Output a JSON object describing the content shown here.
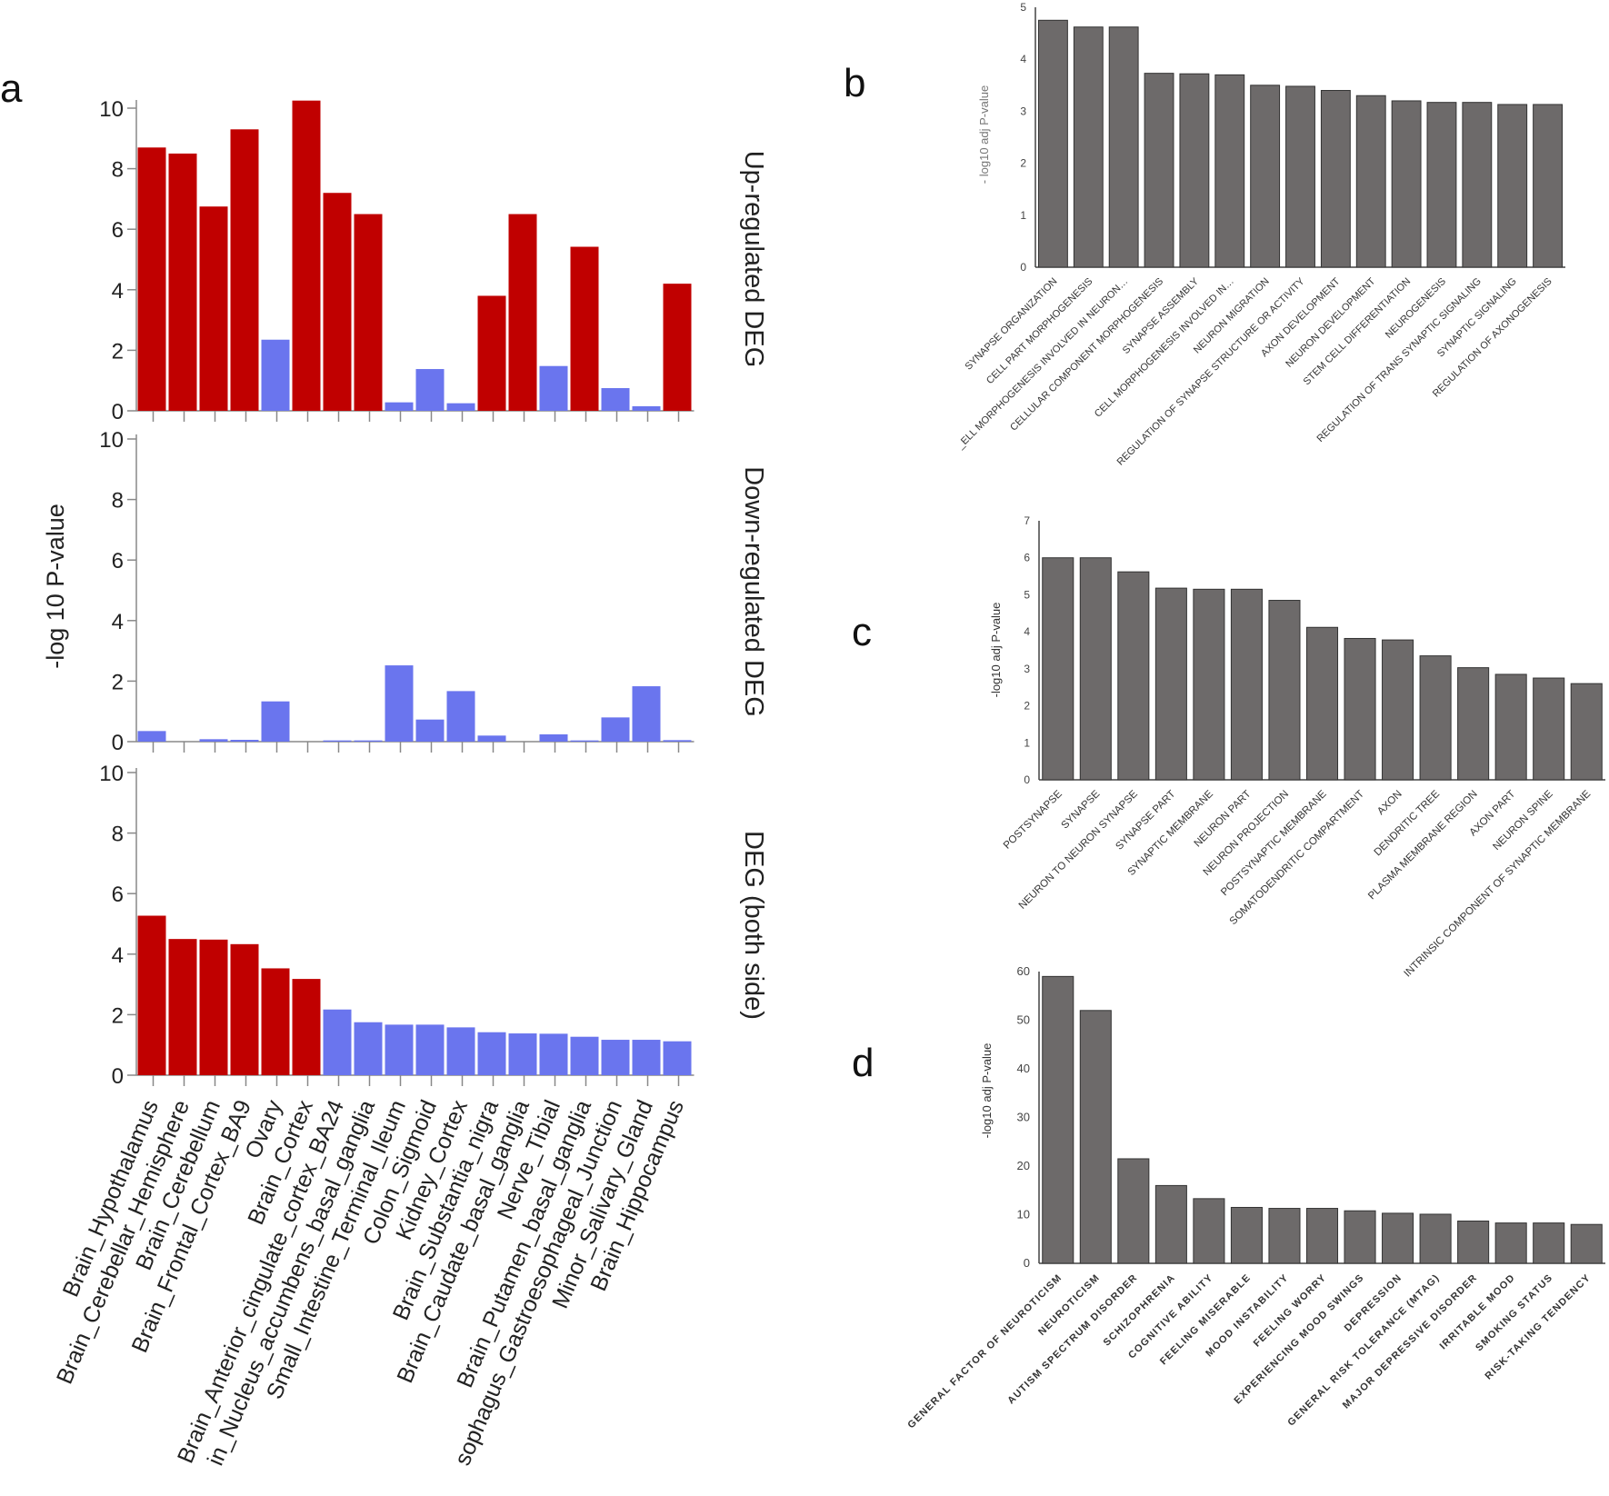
{
  "figure": {
    "panel_labels": [
      "a",
      "b",
      "c",
      "d"
    ],
    "colors": {
      "red": "#c00000",
      "blue": "#6a75ee",
      "gray": "#6d6a6a",
      "axis": "#888888",
      "text": "#222222"
    }
  },
  "chart_data": [
    {
      "id": "a",
      "type": "bar",
      "ylabel": "-log 10 P-value",
      "ylim": [
        0,
        10
      ],
      "yticks": [
        0,
        2,
        4,
        6,
        8,
        10
      ],
      "panels": [
        {
          "title": "Up-regulated DEG",
          "values": [
            8.7,
            8.5,
            6.75,
            9.3,
            2.35,
            10.25,
            7.2,
            6.5,
            0.28,
            1.38,
            0.25,
            3.8,
            6.5,
            1.48,
            5.42,
            0.75,
            0.15,
            4.2
          ],
          "colors": [
            "red",
            "red",
            "red",
            "red",
            "blue",
            "red",
            "red",
            "red",
            "blue",
            "blue",
            "blue",
            "red",
            "red",
            "blue",
            "red",
            "blue",
            "blue",
            "red"
          ]
        },
        {
          "title": "Down-regulated DEG",
          "values": [
            0.35,
            0,
            0.08,
            0.06,
            1.33,
            0,
            0.04,
            0.04,
            2.52,
            0.73,
            1.67,
            0.2,
            0,
            0.24,
            0.04,
            0.8,
            1.83,
            0.05
          ],
          "colors": [
            "blue",
            "blue",
            "blue",
            "blue",
            "blue",
            "blue",
            "blue",
            "blue",
            "blue",
            "blue",
            "blue",
            "blue",
            "blue",
            "blue",
            "blue",
            "blue",
            "blue",
            "blue"
          ]
        },
        {
          "title": "DEG (both side)",
          "values": [
            5.27,
            4.5,
            4.48,
            4.33,
            3.53,
            3.18,
            2.17,
            1.75,
            1.67,
            1.67,
            1.58,
            1.42,
            1.38,
            1.37,
            1.27,
            1.17,
            1.17,
            1.12
          ],
          "colors": [
            "red",
            "red",
            "red",
            "red",
            "red",
            "red",
            "blue",
            "blue",
            "blue",
            "blue",
            "blue",
            "blue",
            "blue",
            "blue",
            "blue",
            "blue",
            "blue",
            "blue"
          ]
        }
      ],
      "categories": [
        "Brain_Hypothalamus",
        "Brain_Cerebellar_Hemisphere",
        "Brain_Cerebellum",
        "Brain_Frontal_Cortex_BA9",
        "Ovary",
        "Brain_Cortex",
        "Brain_Anterior_cingulate_cortex_BA24",
        "Brain_Nucleus_accumbens_basal_ganglia",
        "Small_Intestine_Terminal_Ileum",
        "Colon_Sigmoid",
        "Kidney_Cortex",
        "Brain_Substantia_nigra",
        "Brain_Caudate_basal_ganglia",
        "Nerve_Tibial",
        "Brain_Putamen_basal_ganglia",
        "Esophagus_Gastroesophageal_Junction",
        "Minor_Salivary_Gland",
        "Brain_Hippocampus"
      ],
      "visible_labels": [
        "Brain_Hypothalamus",
        "Brain_Cerebellar_Hemisphere",
        "Brain_Cerebellum",
        "Brain_Frontal_Cortex_BA9",
        "Ovary",
        "Brain_Cortex",
        "Brain_Anterior_cingulate_cortex_BA24",
        "in_Nucleus_accumbens_basal_ganglia",
        "Small_Intestine_Terminal_Ileum",
        "Colon_Sigmoid",
        "Kidney_Cortex",
        "Brain_Substantia_nigra",
        "Brain_Caudate_basal_ganglia",
        "Nerve_Tibial",
        "Brain_Putamen_basal_ganglia",
        "sophagus_Gastroesophageal_Junction",
        "Minor_Salivary_Gland",
        "Brain_Hippocampus"
      ]
    },
    {
      "id": "b",
      "type": "bar",
      "ylabel": "- log10 adj P-value",
      "ylim": [
        0,
        5
      ],
      "yticks": [
        0,
        1,
        2,
        3,
        4,
        5
      ],
      "categories": [
        "SYNAPSE ORGANIZATION",
        "CELL PART MORPHOGENESIS",
        "_ELL MORPHOGENESIS INVOLVED IN NEURON…",
        "CELLULAR COMPONENT MORPHOGENESIS",
        "SYNAPSE ASSEMBLY",
        "CELL MORPHOGENESIS INVOLVED IN…",
        "NEURON MIGRATION",
        "REGULATION OF SYNAPSE STRUCTURE OR ACTIVITY",
        "AXON DEVELOPMENT",
        "NEURON DEVELOPMENT",
        "STEM CELL DIFFERENTIATION",
        "NEUROGENESIS",
        "REGULATION OF TRANS SYNAPTIC SIGNALING",
        "SYNAPTIC SIGNALING",
        "REGULATION OF AXONOGENESIS"
      ],
      "values": [
        4.75,
        4.62,
        4.62,
        3.73,
        3.72,
        3.7,
        3.5,
        3.48,
        3.4,
        3.3,
        3.2,
        3.17,
        3.17,
        3.13,
        3.13
      ]
    },
    {
      "id": "c",
      "type": "bar",
      "ylabel": "-log10 adj P-value",
      "ylim": [
        0,
        7
      ],
      "yticks": [
        0,
        1,
        2,
        3,
        4,
        5,
        6,
        7
      ],
      "categories": [
        "POSTSYNAPSE",
        "SYNAPSE",
        "NEURON TO NEURON SYNAPSE",
        "SYNAPSE PART",
        "SYNAPTIC MEMBRANE",
        "NEURON PART",
        "NEURON PROJECTION",
        "POSTSYNAPTIC MEMBRANE",
        "SOMATODENDRITIC COMPARTMENT",
        "AXON",
        "DENDRITIC TREE",
        "PLASMA MEMBRANE REGION",
        "AXON PART",
        "NEURON SPINE",
        "INTRINSIC COMPONENT OF SYNAPTIC MEMBRANE"
      ],
      "values": [
        6.0,
        6.0,
        5.62,
        5.18,
        5.15,
        5.15,
        4.85,
        4.12,
        3.82,
        3.78,
        3.35,
        3.03,
        2.85,
        2.75,
        2.6
      ]
    },
    {
      "id": "d",
      "type": "bar",
      "ylabel": "-log10 adj P-value",
      "ylim": [
        0,
        60
      ],
      "yticks": [
        0,
        10,
        20,
        30,
        40,
        50,
        60
      ],
      "categories": [
        "GENERAL FACTOR OF NEUROTICISM",
        "NEUROTICISM",
        "AUTISM SPECTRUM DISORDER",
        "SCHIZOPHRENIA",
        "COGNITIVE ABILITY",
        "FEELING MISERABLE",
        "MOOD INSTABILITY",
        "FEELING WORRY",
        "EXPERIENCING MOOD SWINGS",
        "DEPRESSION",
        "GENERAL RISK TOLERANCE (MTAG)",
        "MAJOR DEPRESSIVE DISORDER",
        "IRRITABLE MOOD",
        "SMOKING STATUS",
        "RISK-TAKING TENDENCY"
      ],
      "values": [
        59,
        52,
        21.5,
        16,
        13.3,
        11.5,
        11.3,
        11.3,
        10.8,
        10.3,
        10.1,
        8.7,
        8.3,
        8.3,
        8.0
      ]
    }
  ]
}
